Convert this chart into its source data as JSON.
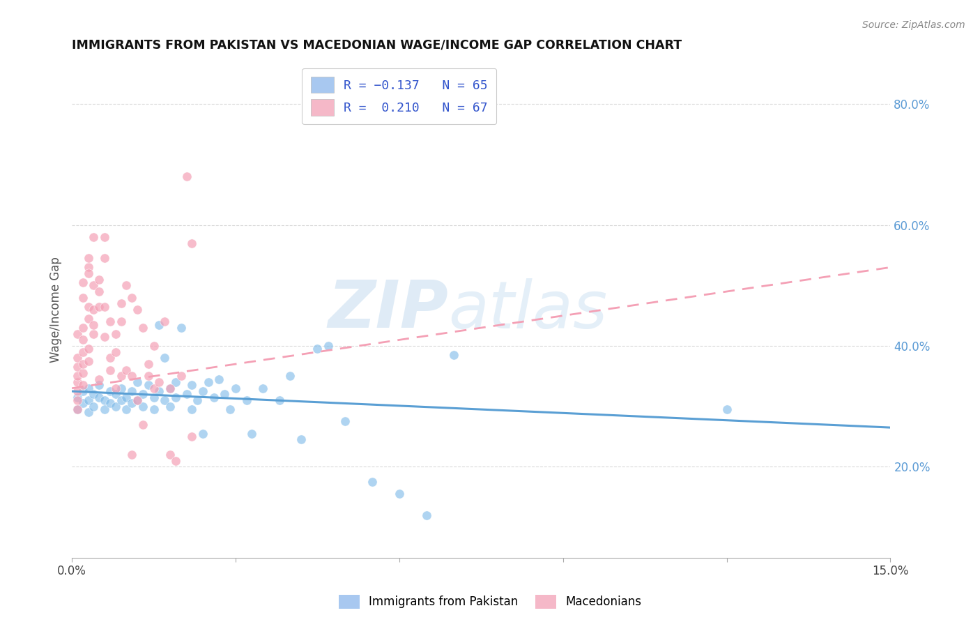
{
  "title": "IMMIGRANTS FROM PAKISTAN VS MACEDONIAN WAGE/INCOME GAP CORRELATION CHART",
  "source": "Source: ZipAtlas.com",
  "ylabel": "Wage/Income Gap",
  "x_min": 0.0,
  "x_max": 0.15,
  "y_min": 0.05,
  "y_max": 0.87,
  "y_ticks_right": [
    0.2,
    0.4,
    0.6,
    0.8
  ],
  "y_tick_labels_right": [
    "20.0%",
    "40.0%",
    "60.0%",
    "80.0%"
  ],
  "pakistan_color": "#7ab8e8",
  "macedonian_color": "#f4a0b5",
  "pakistan_line_color": "#5a9fd4",
  "macedonian_line_color": "#f4a0b5",
  "pakistan_scatter": [
    [
      0.001,
      0.315
    ],
    [
      0.001,
      0.295
    ],
    [
      0.002,
      0.305
    ],
    [
      0.002,
      0.325
    ],
    [
      0.003,
      0.31
    ],
    [
      0.003,
      0.33
    ],
    [
      0.003,
      0.29
    ],
    [
      0.004,
      0.32
    ],
    [
      0.004,
      0.3
    ],
    [
      0.005,
      0.315
    ],
    [
      0.005,
      0.335
    ],
    [
      0.006,
      0.31
    ],
    [
      0.006,
      0.295
    ],
    [
      0.007,
      0.325
    ],
    [
      0.007,
      0.305
    ],
    [
      0.008,
      0.32
    ],
    [
      0.008,
      0.3
    ],
    [
      0.009,
      0.33
    ],
    [
      0.009,
      0.31
    ],
    [
      0.01,
      0.315
    ],
    [
      0.01,
      0.295
    ],
    [
      0.011,
      0.325
    ],
    [
      0.011,
      0.305
    ],
    [
      0.012,
      0.34
    ],
    [
      0.012,
      0.31
    ],
    [
      0.013,
      0.32
    ],
    [
      0.013,
      0.3
    ],
    [
      0.014,
      0.335
    ],
    [
      0.015,
      0.315
    ],
    [
      0.015,
      0.295
    ],
    [
      0.016,
      0.325
    ],
    [
      0.016,
      0.435
    ],
    [
      0.017,
      0.38
    ],
    [
      0.017,
      0.31
    ],
    [
      0.018,
      0.33
    ],
    [
      0.018,
      0.3
    ],
    [
      0.019,
      0.34
    ],
    [
      0.019,
      0.315
    ],
    [
      0.02,
      0.43
    ],
    [
      0.021,
      0.32
    ],
    [
      0.022,
      0.335
    ],
    [
      0.022,
      0.295
    ],
    [
      0.023,
      0.31
    ],
    [
      0.024,
      0.325
    ],
    [
      0.024,
      0.255
    ],
    [
      0.025,
      0.34
    ],
    [
      0.026,
      0.315
    ],
    [
      0.027,
      0.345
    ],
    [
      0.028,
      0.32
    ],
    [
      0.029,
      0.295
    ],
    [
      0.03,
      0.33
    ],
    [
      0.032,
      0.31
    ],
    [
      0.033,
      0.255
    ],
    [
      0.035,
      0.33
    ],
    [
      0.038,
      0.31
    ],
    [
      0.04,
      0.35
    ],
    [
      0.042,
      0.245
    ],
    [
      0.045,
      0.395
    ],
    [
      0.047,
      0.4
    ],
    [
      0.05,
      0.275
    ],
    [
      0.055,
      0.175
    ],
    [
      0.06,
      0.155
    ],
    [
      0.065,
      0.12
    ],
    [
      0.07,
      0.385
    ],
    [
      0.12,
      0.295
    ]
  ],
  "macedonian_scatter": [
    [
      0.001,
      0.325
    ],
    [
      0.001,
      0.34
    ],
    [
      0.001,
      0.31
    ],
    [
      0.001,
      0.35
    ],
    [
      0.001,
      0.365
    ],
    [
      0.001,
      0.295
    ],
    [
      0.001,
      0.38
    ],
    [
      0.001,
      0.42
    ],
    [
      0.002,
      0.355
    ],
    [
      0.002,
      0.43
    ],
    [
      0.002,
      0.37
    ],
    [
      0.002,
      0.39
    ],
    [
      0.002,
      0.41
    ],
    [
      0.002,
      0.335
    ],
    [
      0.002,
      0.48
    ],
    [
      0.002,
      0.505
    ],
    [
      0.003,
      0.445
    ],
    [
      0.003,
      0.395
    ],
    [
      0.003,
      0.53
    ],
    [
      0.003,
      0.52
    ],
    [
      0.003,
      0.465
    ],
    [
      0.003,
      0.375
    ],
    [
      0.003,
      0.545
    ],
    [
      0.004,
      0.58
    ],
    [
      0.004,
      0.42
    ],
    [
      0.004,
      0.46
    ],
    [
      0.004,
      0.5
    ],
    [
      0.004,
      0.435
    ],
    [
      0.005,
      0.49
    ],
    [
      0.005,
      0.465
    ],
    [
      0.005,
      0.51
    ],
    [
      0.005,
      0.345
    ],
    [
      0.006,
      0.545
    ],
    [
      0.006,
      0.415
    ],
    [
      0.006,
      0.465
    ],
    [
      0.006,
      0.58
    ],
    [
      0.007,
      0.44
    ],
    [
      0.007,
      0.36
    ],
    [
      0.007,
      0.38
    ],
    [
      0.008,
      0.42
    ],
    [
      0.008,
      0.39
    ],
    [
      0.008,
      0.33
    ],
    [
      0.009,
      0.35
    ],
    [
      0.009,
      0.47
    ],
    [
      0.009,
      0.44
    ],
    [
      0.01,
      0.5
    ],
    [
      0.01,
      0.36
    ],
    [
      0.011,
      0.22
    ],
    [
      0.011,
      0.35
    ],
    [
      0.011,
      0.48
    ],
    [
      0.012,
      0.46
    ],
    [
      0.012,
      0.31
    ],
    [
      0.013,
      0.43
    ],
    [
      0.013,
      0.27
    ],
    [
      0.014,
      0.37
    ],
    [
      0.014,
      0.35
    ],
    [
      0.015,
      0.33
    ],
    [
      0.015,
      0.4
    ],
    [
      0.016,
      0.34
    ],
    [
      0.017,
      0.44
    ],
    [
      0.018,
      0.22
    ],
    [
      0.018,
      0.33
    ],
    [
      0.019,
      0.21
    ],
    [
      0.02,
      0.35
    ],
    [
      0.021,
      0.68
    ],
    [
      0.022,
      0.25
    ],
    [
      0.022,
      0.57
    ]
  ],
  "watermark_zip": "ZIP",
  "watermark_atlas": "atlas",
  "background_color": "#ffffff",
  "grid_color": "#d0d0d0",
  "legend_box_color_pak": "#a8c8f0",
  "legend_box_color_mac": "#f5b8c8",
  "legend_text_color": "#3355cc"
}
